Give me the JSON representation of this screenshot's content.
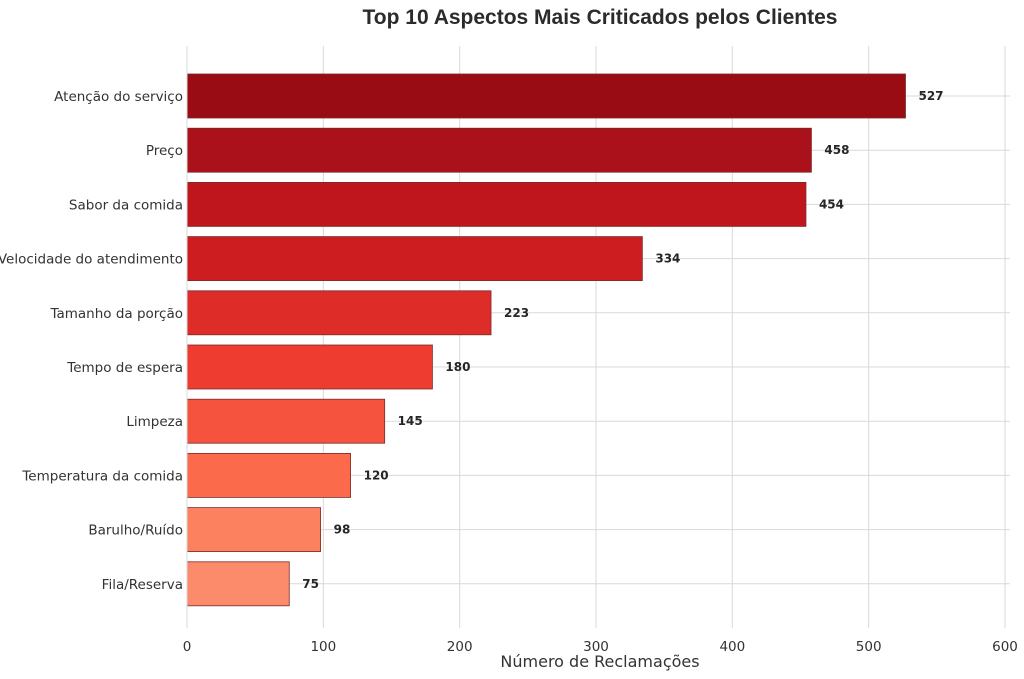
{
  "chart_data": {
    "type": "bar",
    "orientation": "horizontal",
    "title": "Top 10 Aspectos Mais Criticados pelos Clientes",
    "xlabel": "Número de Reclamações",
    "ylabel": "",
    "xlim": [
      0,
      610
    ],
    "xticks": [
      0,
      100,
      200,
      300,
      400,
      500,
      600
    ],
    "grid": true,
    "categories": [
      "Atenção do serviço",
      "Preço",
      "Sabor da comida",
      "Velocidade do atendimento",
      "Tamanho da porção",
      "Tempo de espera",
      "Limpeza",
      "Temperatura da comida",
      "Barulho/Ruído",
      "Fila/Reserva"
    ],
    "values": [
      527,
      458,
      454,
      334,
      223,
      180,
      145,
      120,
      98,
      75
    ],
    "colors": [
      "#990c14",
      "#ab111a",
      "#bf161d",
      "#cd1d21",
      "#de2c28",
      "#ee3c31",
      "#f5533e",
      "#fb6b4b",
      "#fc815f",
      "#fc8b6c"
    ]
  }
}
